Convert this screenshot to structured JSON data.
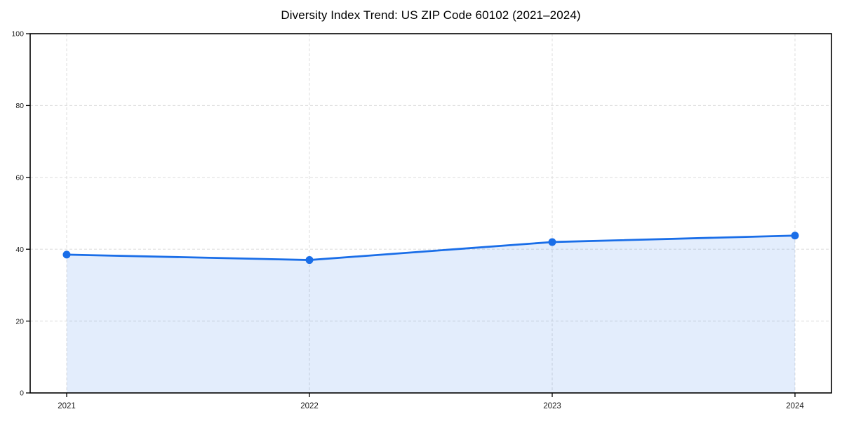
{
  "chart_data": {
    "type": "area",
    "title": "Diversity Index Trend: US ZIP Code 60102 (2021–2024)",
    "categories": [
      "2021",
      "2022",
      "2023",
      "2024"
    ],
    "values": [
      38.5,
      37,
      42,
      43.8
    ],
    "xlabel": "",
    "ylabel": "",
    "ylim": [
      0,
      100
    ],
    "yticks": [
      0,
      20,
      40,
      60,
      80,
      100
    ],
    "grid": true,
    "grid_style": "dashed",
    "legend": "none",
    "marker": "circle",
    "fill_opacity": 0.12,
    "colors": {
      "line": "#1a6ee8",
      "marker": "#1a6ee8",
      "fill": "#1a6ee8",
      "grid": "#dfdfdf",
      "axis": "#000000",
      "tick_label": "#1a1a1a",
      "title": "#000000",
      "background": "#ffffff"
    }
  }
}
